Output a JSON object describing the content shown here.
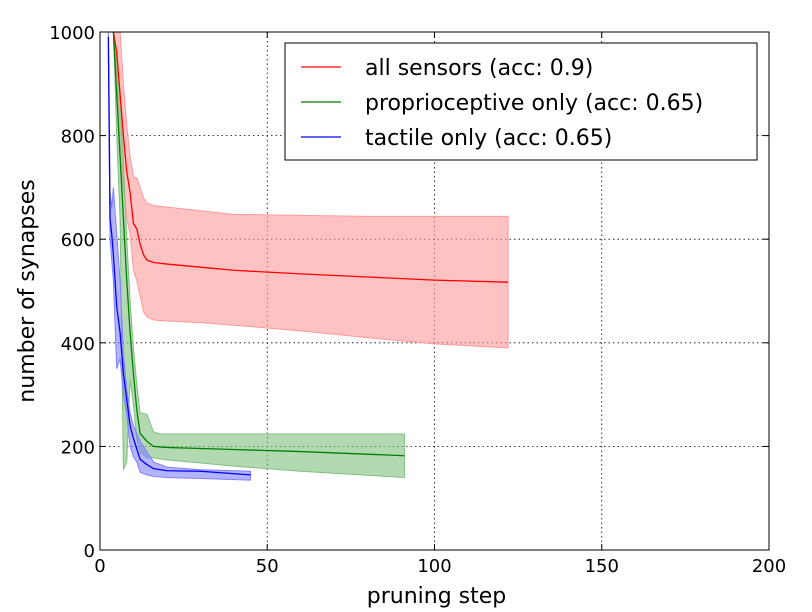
{
  "chart_data": {
    "type": "line",
    "title": "",
    "xlabel": "pruning step",
    "ylabel": "number of synapses",
    "xlim": [
      0,
      200
    ],
    "ylim": [
      0,
      1000
    ],
    "xticks": [
      0,
      50,
      100,
      150,
      200
    ],
    "yticks": [
      0,
      200,
      400,
      600,
      800,
      1000
    ],
    "grid": true,
    "legend_position": "top-right",
    "series": [
      {
        "name": "all sensors (acc: 0.9)",
        "color": "#ff0000",
        "band_color": "#ff9999",
        "x": [
          4,
          5,
          6,
          7,
          8,
          9,
          10,
          11,
          12,
          13,
          14,
          16,
          20,
          30,
          40,
          60,
          80,
          100,
          122
        ],
        "y": [
          1000,
          960,
          880,
          800,
          730,
          690,
          630,
          620,
          590,
          570,
          560,
          555,
          552,
          546,
          540,
          533,
          527,
          521,
          517
        ],
        "upper": [
          1000,
          1000,
          1000,
          900,
          820,
          760,
          720,
          718,
          700,
          680,
          670,
          665,
          662,
          655,
          648,
          646,
          644,
          644,
          644
        ],
        "lower": [
          1000,
          920,
          760,
          700,
          640,
          610,
          540,
          520,
          490,
          460,
          450,
          444,
          442,
          439,
          434,
          423,
          410,
          398,
          390
        ]
      },
      {
        "name": "proprioceptive only (acc: 0.65)",
        "color": "#008000",
        "band_color": "#80c080",
        "x": [
          4,
          5,
          6,
          7,
          8,
          9,
          10,
          11,
          12,
          14,
          16,
          18,
          20,
          30,
          40,
          60,
          91
        ],
        "y": [
          1000,
          880,
          760,
          640,
          520,
          420,
          340,
          270,
          225,
          210,
          200,
          199,
          198,
          196,
          194,
          190,
          182
        ],
        "upper": [
          1000,
          960,
          880,
          750,
          600,
          480,
          390,
          320,
          265,
          262,
          228,
          224,
          224,
          224,
          224,
          224,
          224
        ],
        "lower": [
          1000,
          800,
          640,
          155,
          170,
          330,
          280,
          215,
          190,
          178,
          178,
          176,
          174,
          168,
          162,
          152,
          140
        ]
      },
      {
        "name": "tactile only (acc: 0.65)",
        "color": "#0000ff",
        "band_color": "#8080ff",
        "x": [
          2.5,
          3,
          3.5,
          4,
          5,
          6,
          7,
          8,
          9,
          10,
          11,
          12,
          14,
          16,
          20,
          30,
          45
        ],
        "y": [
          990,
          640,
          610,
          570,
          470,
          420,
          340,
          290,
          240,
          215,
          195,
          175,
          165,
          157,
          153,
          152,
          145
        ],
        "upper": [
          1000,
          690,
          660,
          700,
          610,
          520,
          380,
          310,
          265,
          240,
          225,
          210,
          190,
          170,
          160,
          155,
          152
        ],
        "lower": [
          950,
          600,
          560,
          520,
          350,
          370,
          300,
          260,
          200,
          180,
          170,
          150,
          145,
          142,
          140,
          138,
          135
        ]
      }
    ]
  }
}
